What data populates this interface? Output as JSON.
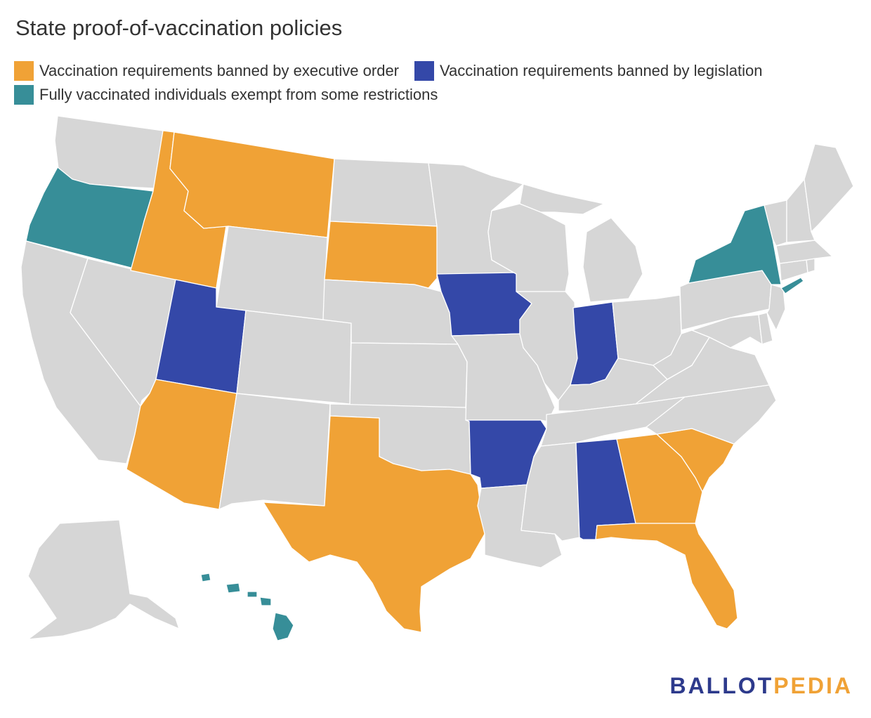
{
  "title": "State proof-of-vaccination policies",
  "legend": [
    {
      "label": "Vaccination requirements banned by executive order",
      "color": "#f0a236"
    },
    {
      "label": "Vaccination requirements banned by legislation",
      "color": "#3448a8"
    },
    {
      "label": "Fully vaccinated individuals exempt from some restrictions",
      "color": "#378e98"
    }
  ],
  "default_color": "#d6d6d6",
  "states": [
    {
      "name": "Washington",
      "category": "none"
    },
    {
      "name": "Oregon",
      "category": "exempt"
    },
    {
      "name": "California",
      "category": "none"
    },
    {
      "name": "Nevada",
      "category": "none"
    },
    {
      "name": "Idaho",
      "category": "executive_order"
    },
    {
      "name": "Montana",
      "category": "executive_order"
    },
    {
      "name": "Wyoming",
      "category": "none"
    },
    {
      "name": "Utah",
      "category": "legislation"
    },
    {
      "name": "Arizona",
      "category": "executive_order"
    },
    {
      "name": "Colorado",
      "category": "none"
    },
    {
      "name": "New Mexico",
      "category": "none"
    },
    {
      "name": "North Dakota",
      "category": "none"
    },
    {
      "name": "South Dakota",
      "category": "executive_order"
    },
    {
      "name": "Nebraska",
      "category": "none"
    },
    {
      "name": "Kansas",
      "category": "none"
    },
    {
      "name": "Oklahoma",
      "category": "none"
    },
    {
      "name": "Texas",
      "category": "executive_order"
    },
    {
      "name": "Minnesota",
      "category": "none"
    },
    {
      "name": "Iowa",
      "category": "legislation"
    },
    {
      "name": "Missouri",
      "category": "none"
    },
    {
      "name": "Arkansas",
      "category": "legislation"
    },
    {
      "name": "Louisiana",
      "category": "none"
    },
    {
      "name": "Wisconsin",
      "category": "none"
    },
    {
      "name": "Illinois",
      "category": "none"
    },
    {
      "name": "Michigan",
      "category": "none"
    },
    {
      "name": "Indiana",
      "category": "legislation"
    },
    {
      "name": "Ohio",
      "category": "none"
    },
    {
      "name": "Kentucky",
      "category": "none"
    },
    {
      "name": "Tennessee",
      "category": "none"
    },
    {
      "name": "Mississippi",
      "category": "none"
    },
    {
      "name": "Alabama",
      "category": "legislation"
    },
    {
      "name": "Georgia",
      "category": "executive_order"
    },
    {
      "name": "Florida",
      "category": "executive_order"
    },
    {
      "name": "South Carolina",
      "category": "executive_order"
    },
    {
      "name": "North Carolina",
      "category": "none"
    },
    {
      "name": "Virginia",
      "category": "none"
    },
    {
      "name": "West Virginia",
      "category": "none"
    },
    {
      "name": "Maryland",
      "category": "none"
    },
    {
      "name": "Delaware",
      "category": "none"
    },
    {
      "name": "New Jersey",
      "category": "none"
    },
    {
      "name": "Pennsylvania",
      "category": "none"
    },
    {
      "name": "New York",
      "category": "exempt"
    },
    {
      "name": "Connecticut",
      "category": "none"
    },
    {
      "name": "Rhode Island",
      "category": "none"
    },
    {
      "name": "Massachusetts",
      "category": "none"
    },
    {
      "name": "Vermont",
      "category": "none"
    },
    {
      "name": "New Hampshire",
      "category": "none"
    },
    {
      "name": "Maine",
      "category": "none"
    },
    {
      "name": "Alaska",
      "category": "none"
    },
    {
      "name": "Hawaii",
      "category": "exempt"
    }
  ],
  "categories": {
    "executive_order": "#f0a236",
    "legislation": "#3448a8",
    "exempt": "#378e98",
    "none": "#d6d6d6"
  },
  "brand": {
    "part1": "BALLOT",
    "part2": "PEDIA"
  }
}
